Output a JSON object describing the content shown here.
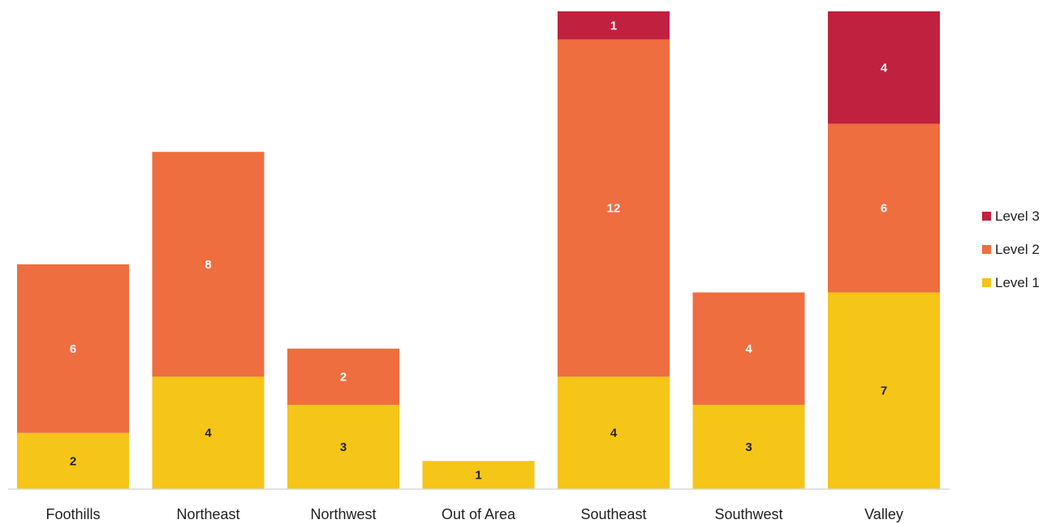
{
  "chart_data": {
    "type": "bar",
    "stacked": true,
    "categories": [
      "Foothills",
      "Northeast",
      "Northwest",
      "Out of Area",
      "Southeast",
      "Southwest",
      "Valley"
    ],
    "series": [
      {
        "name": "Level 1",
        "color": "#f5c518",
        "label_color": "#1f1f1f",
        "values": [
          2,
          4,
          3,
          1,
          4,
          3,
          7
        ]
      },
      {
        "name": "Level 2",
        "color": "#ee6e40",
        "label_color": "#ffffff",
        "values": [
          6,
          8,
          2,
          0,
          12,
          4,
          6
        ]
      },
      {
        "name": "Level 3",
        "color": "#c0213e",
        "label_color": "#ffffff",
        "values": [
          0,
          0,
          0,
          0,
          1,
          0,
          4
        ]
      }
    ],
    "legend_order": [
      "Level 3",
      "Level 2",
      "Level 1"
    ],
    "legend_position": "right",
    "ylim": [
      0,
      17
    ],
    "y_axis_shown": false,
    "grid": false,
    "title": "",
    "xlabel": "",
    "ylabel": ""
  }
}
